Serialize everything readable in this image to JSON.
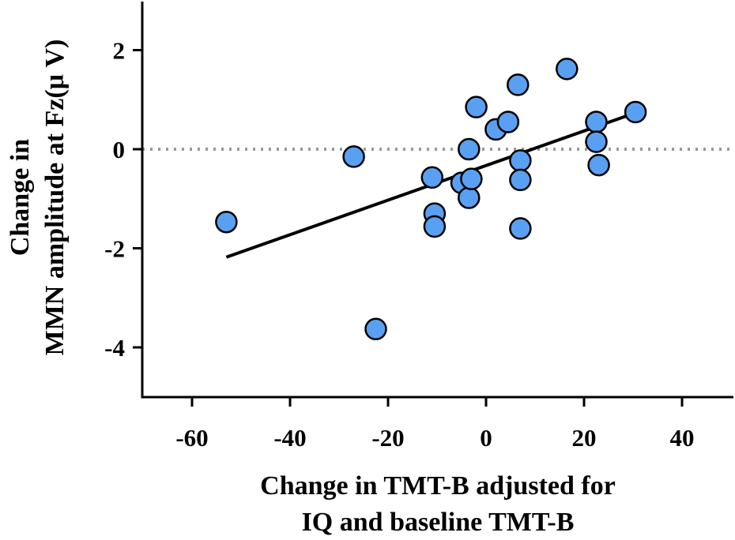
{
  "chart_data": {
    "type": "scatter",
    "title": "",
    "xlabel_lines": [
      "Change in TMT-B adjusted for",
      "IQ and baseline TMT-B"
    ],
    "ylabel_lines": [
      "Change in",
      "MMN amplitude at Fz(μ V)"
    ],
    "xlim": [
      -70,
      50
    ],
    "ylim": [
      -5,
      3
    ],
    "xticks": [
      -60,
      -40,
      -20,
      0,
      20,
      40
    ],
    "yticks": [
      -4,
      -2,
      0,
      2
    ],
    "xtick_labels": [
      "-60",
      "-40",
      "-20",
      "0",
      "20",
      "40"
    ],
    "ytick_labels": [
      "-4",
      "-2",
      "0",
      "2"
    ],
    "reference_line_y": 0,
    "points": [
      {
        "x": -53,
        "y": -1.47
      },
      {
        "x": -27,
        "y": -0.15
      },
      {
        "x": -22.5,
        "y": -3.63
      },
      {
        "x": -11,
        "y": -0.57
      },
      {
        "x": -10.5,
        "y": -1.3
      },
      {
        "x": -10.5,
        "y": -1.56
      },
      {
        "x": -5,
        "y": -0.68
      },
      {
        "x": -3.5,
        "y": -0.98
      },
      {
        "x": -3.5,
        "y": 0.0
      },
      {
        "x": -3,
        "y": -0.6
      },
      {
        "x": -2,
        "y": 0.85
      },
      {
        "x": 2,
        "y": 0.4
      },
      {
        "x": 4.5,
        "y": 0.55
      },
      {
        "x": 6.5,
        "y": 1.3
      },
      {
        "x": 7,
        "y": -0.23
      },
      {
        "x": 7,
        "y": -0.62
      },
      {
        "x": 7,
        "y": -1.6
      },
      {
        "x": 16.5,
        "y": 1.62
      },
      {
        "x": 22.5,
        "y": 0.55
      },
      {
        "x": 22.5,
        "y": 0.15
      },
      {
        "x": 23,
        "y": -0.32
      },
      {
        "x": 30.5,
        "y": 0.75
      }
    ],
    "trendline": {
      "x": [
        -53,
        29.5
      ],
      "y": [
        -2.18,
        0.7
      ]
    },
    "colors": {
      "marker_fill": "#5AA0F2",
      "marker_edge": "#000000",
      "trendline": "#000000",
      "reference_line": "#999999"
    }
  }
}
